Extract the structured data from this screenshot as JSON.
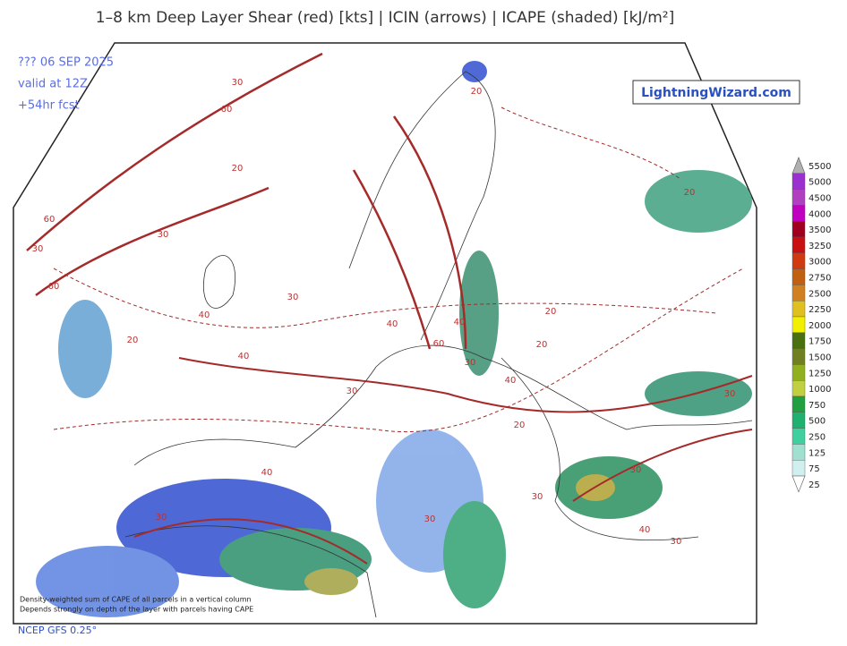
{
  "header": {
    "title": "1–8 km Deep Layer Shear (red) [kts] | ICIN (arrows) | ICAPE (shaded) [kJ/m²]",
    "run": "??? 06 SEP 2025",
    "valid": "valid at 12Z",
    "forecast": "+54hr fcst",
    "logo": "LightningWizard.com"
  },
  "legend": {
    "labels": [
      "5500",
      "5000",
      "4500",
      "4000",
      "3500",
      "3250",
      "3000",
      "2750",
      "2500",
      "2250",
      "2000",
      "1750",
      "1500",
      "1250",
      "1000",
      "750",
      "500",
      "250",
      "125",
      "75",
      "25"
    ]
  },
  "map": {
    "contour_labels": [
      "30",
      "60",
      "60",
      "30",
      "30",
      "60",
      "40",
      "30",
      "40",
      "30",
      "40",
      "40",
      "60",
      "20",
      "20",
      "20",
      "40",
      "30",
      "20",
      "30",
      "40",
      "30",
      "30",
      "30",
      "20",
      "30",
      "40",
      "30",
      "20",
      "20"
    ],
    "note": [
      "Density-weighted sum of CAPE of all parcels in a vertical column",
      "Depends strongly on depth of the layer with parcels having CAPE"
    ]
  },
  "footer": {
    "model": "NCEP GFS 0.25°"
  }
}
